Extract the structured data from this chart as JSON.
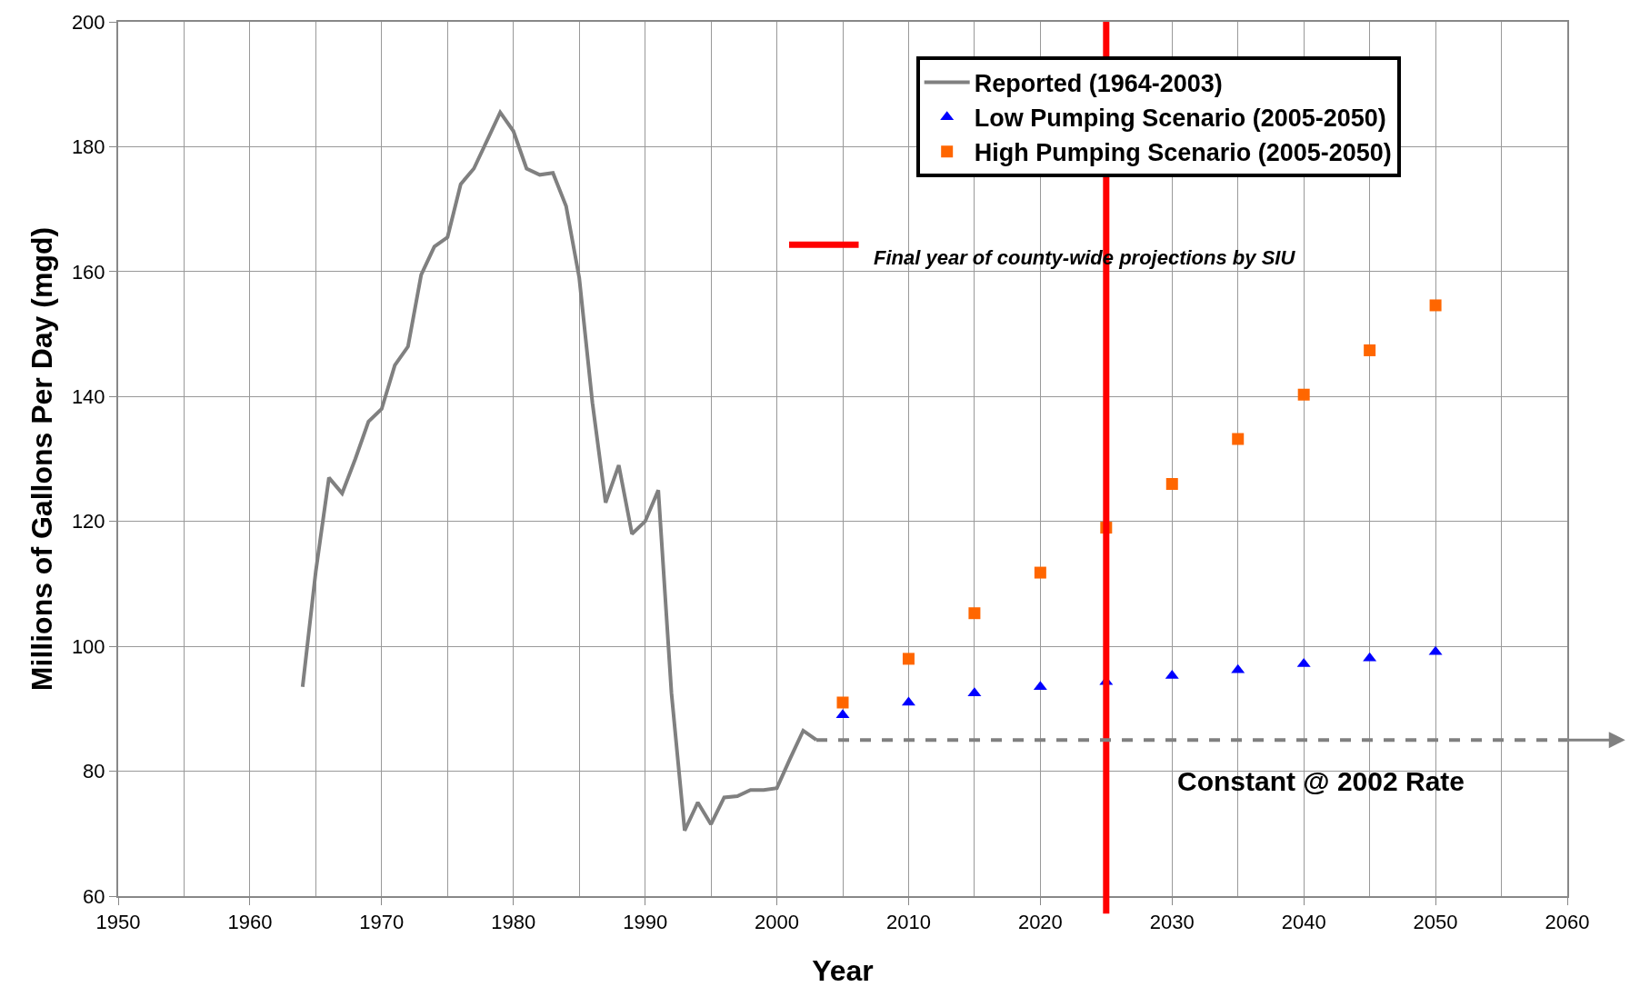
{
  "chart_data": {
    "type": "line",
    "xlabel": "Year",
    "ylabel": "Millions of Gallons Per Day (mgd)",
    "xlim": [
      1950,
      2060
    ],
    "xticks": [
      1950,
      1960,
      1970,
      1980,
      1990,
      2000,
      2010,
      2020,
      2030,
      2040,
      2050,
      2060
    ],
    "ylim": [
      60,
      200
    ],
    "yticks": [
      60,
      80,
      100,
      120,
      140,
      160,
      180,
      200
    ],
    "grid": true,
    "legend": "top right",
    "series": [
      {
        "name": "Reported (1964-2003)",
        "color": "#808080",
        "marker": "none",
        "line_style": "solid",
        "x": [
          1964,
          1965,
          1966,
          1967,
          1968,
          1969,
          1970,
          1971,
          1972,
          1973,
          1974,
          1975,
          1976,
          1977,
          1978,
          1979,
          1980,
          1981,
          1982,
          1983,
          1984,
          1985,
          1986,
          1987,
          1988,
          1989,
          1990,
          1991,
          1992,
          1993,
          1994,
          1995,
          1996,
          1997,
          1998,
          1999,
          2000,
          2001,
          2002,
          2003
        ],
        "values": [
          93.5,
          112,
          127,
          124.5,
          130,
          136,
          138,
          145,
          148,
          159.5,
          164,
          165.5,
          174,
          176.5,
          181,
          185.5,
          182.5,
          176.5,
          175.5,
          175.8,
          170.5,
          159,
          139,
          123,
          129,
          118,
          120,
          125,
          92.5,
          70.5,
          75,
          71.5,
          75.8,
          76,
          77,
          77,
          77.3,
          82,
          86.5,
          85
        ]
      },
      {
        "name": "Low Pumping Scenario (2005-2050)",
        "type": "scatter",
        "color": "#0000ff",
        "marker": "triangle",
        "x": [
          2005,
          2010,
          2015,
          2020,
          2025,
          2030,
          2035,
          2040,
          2045,
          2050
        ],
        "values": [
          89,
          91,
          92.5,
          93.5,
          94.3,
          95.3,
          96.2,
          97.2,
          98.1,
          99.1
        ]
      },
      {
        "name": "High Pumping Scenario (2005-2050)",
        "type": "scatter",
        "color": "#ff6600",
        "marker": "square",
        "x": [
          2005,
          2010,
          2015,
          2020,
          2025,
          2030,
          2035,
          2040,
          2045,
          2050
        ],
        "values": [
          91,
          98,
          105.3,
          111.8,
          119,
          126,
          133.2,
          140.3,
          147.4,
          154.6
        ]
      }
    ],
    "ref_lines": [
      {
        "axis": "x",
        "value": 2025,
        "label": "Final year of county-wide projections by SIU",
        "color": "#ff0000"
      },
      {
        "axis": "y",
        "value": 85,
        "label": "Constant @ 2002 Rate",
        "color": "#808080",
        "line_style": "dashed"
      }
    ]
  }
}
